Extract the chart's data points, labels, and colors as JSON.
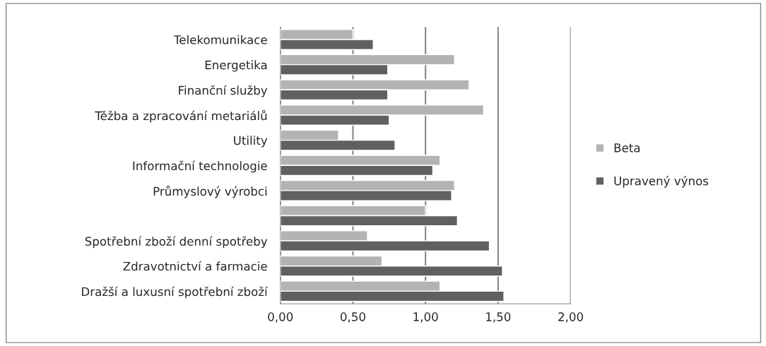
{
  "chart_data": {
    "type": "bar",
    "orientation": "horizontal",
    "categories": [
      "Telekomunikace",
      "Energetika",
      "Finanční služby",
      "Těžba a zpracování metariálů",
      "Utility",
      "Informační technologie",
      "Průmyslový výrobci",
      null,
      "Spotřební zboží denní spotřeby",
      "Zdravotnictví a farmacie",
      "Dražší a luxusní spotřební zboží"
    ],
    "series": [
      {
        "name": "Beta",
        "color": "#b3b3b3",
        "values": [
          0.5,
          1.2,
          1.3,
          1.4,
          0.4,
          1.1,
          1.2,
          1.0,
          0.6,
          0.7,
          1.1
        ]
      },
      {
        "name": "Upravený výnos",
        "color": "#606060",
        "values": [
          0.64,
          0.74,
          0.74,
          0.75,
          0.79,
          1.05,
          1.18,
          1.22,
          1.44,
          1.53,
          1.54
        ]
      }
    ],
    "xlim": [
      0,
      2
    ],
    "xticks": [
      {
        "value": 0,
        "label": "0,00"
      },
      {
        "value": 0.5,
        "label": "0,50"
      },
      {
        "value": 1,
        "label": "1,00"
      },
      {
        "value": 1.5,
        "label": "1,50"
      },
      {
        "value": 2,
        "label": "2,00"
      }
    ],
    "grid": "x",
    "legend": "right"
  }
}
